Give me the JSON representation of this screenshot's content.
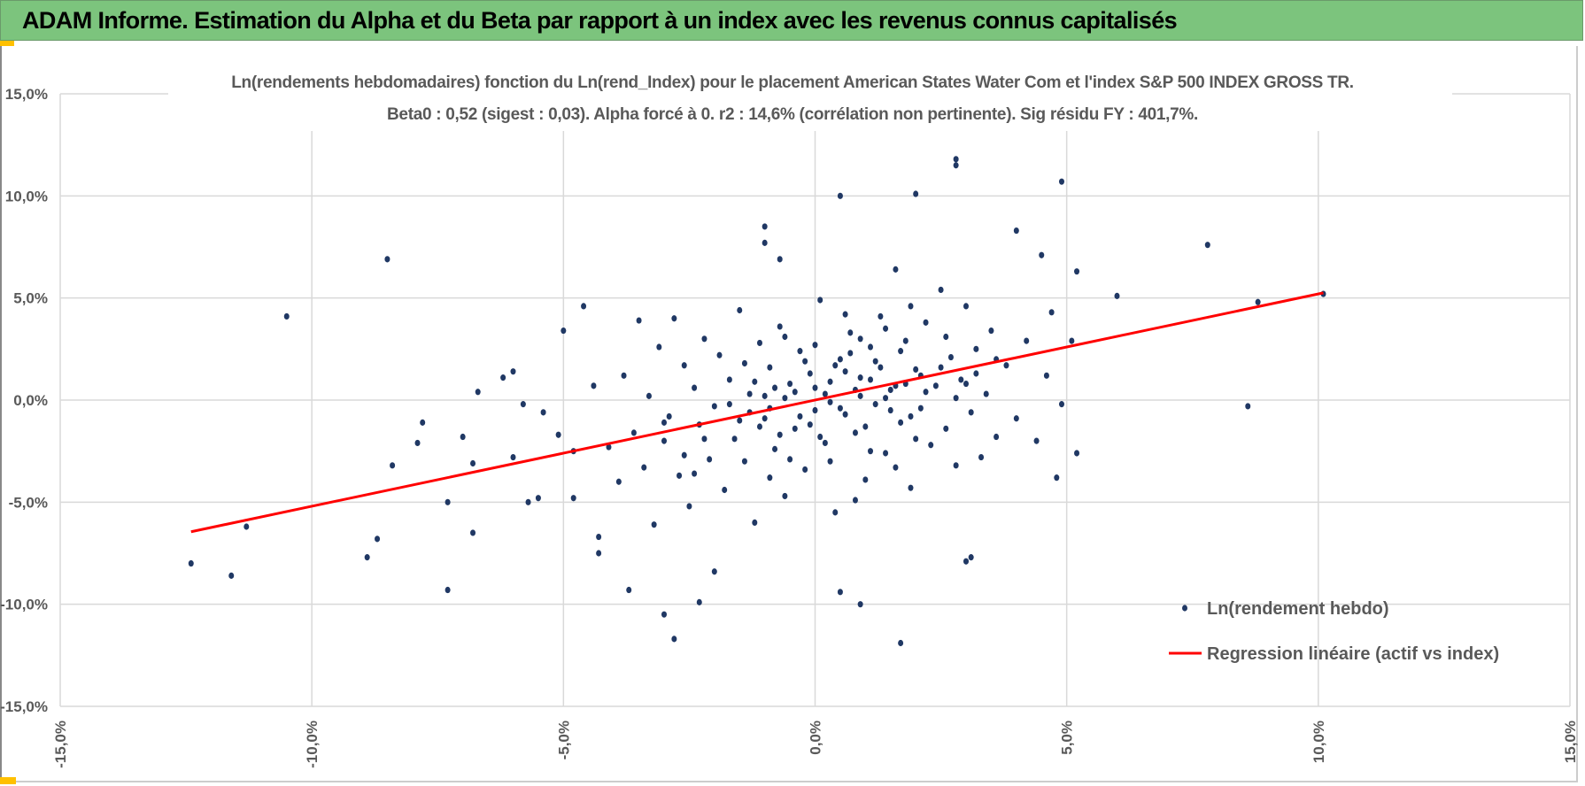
{
  "header": {
    "title": "ADAM Informe. Estimation du Alpha et du Beta par rapport à un index avec les revenus connus capitalisés"
  },
  "colors": {
    "header_bg": "#7cc47d",
    "points": "#203864",
    "regression": "#ff0000",
    "grid": "#d9d9d9",
    "text": "#595959",
    "accent": "#ffc000"
  },
  "chart_data": {
    "type": "scatter",
    "title": "Ln(rendements hebdomadaires) fonction du Ln(rend_Index) pour le placement American States Water Com et l'index S&P 500 INDEX GROSS TR.",
    "subtitle": "Beta0 : 0,52 (sigest : 0,03).  Alpha forcé à 0. r2 : 14,6% (corrélation non pertinente). Sig résidu FY : 401,7%.",
    "xlim": [
      -15,
      15
    ],
    "ylim": [
      -15,
      15
    ],
    "x_ticks": [
      "-15,0%",
      "-10,0%",
      "-5,0%",
      "0,0%",
      "5,0%",
      "10,0%",
      "15,0%"
    ],
    "y_ticks": [
      "15,0%",
      "10,0%",
      "5,0%",
      "0,0%",
      "-5,0%",
      "-10,0%",
      "-15,0%"
    ],
    "grid": true,
    "legend_position": "bottom-right",
    "series": [
      {
        "name": "Ln(rendement hebdo)",
        "type": "scatter",
        "points": [
          [
            -12.4,
            -8.0
          ],
          [
            -11.6,
            -8.6
          ],
          [
            -11.3,
            -6.2
          ],
          [
            -10.5,
            4.1
          ],
          [
            -8.5,
            6.9
          ],
          [
            -8.9,
            -7.7
          ],
          [
            -8.7,
            -6.8
          ],
          [
            -8.4,
            -3.2
          ],
          [
            -7.9,
            -2.1
          ],
          [
            -7.8,
            -1.1
          ],
          [
            -7.3,
            -9.3
          ],
          [
            -7.3,
            -5.0
          ],
          [
            -7.0,
            -1.8
          ],
          [
            -6.8,
            -3.1
          ],
          [
            -6.8,
            -6.5
          ],
          [
            -6.7,
            0.4
          ],
          [
            -6.2,
            1.1
          ],
          [
            -6.0,
            1.4
          ],
          [
            -6.0,
            -2.8
          ],
          [
            -5.8,
            -0.2
          ],
          [
            -5.7,
            -5.0
          ],
          [
            -5.5,
            -4.8
          ],
          [
            -5.4,
            -0.6
          ],
          [
            -5.0,
            3.4
          ],
          [
            -4.6,
            4.6
          ],
          [
            -5.1,
            -1.7
          ],
          [
            -4.8,
            -2.5
          ],
          [
            -4.8,
            -4.8
          ],
          [
            -4.4,
            0.7
          ],
          [
            -4.3,
            -6.7
          ],
          [
            -4.3,
            -7.5
          ],
          [
            -3.7,
            -9.3
          ],
          [
            -3.0,
            -10.5
          ],
          [
            -2.8,
            -11.7
          ],
          [
            -2.3,
            -9.9
          ],
          [
            -2.0,
            -8.4
          ],
          [
            -1.0,
            7.7
          ],
          [
            -0.7,
            6.9
          ],
          [
            -1.0,
            8.5
          ],
          [
            0.5,
            10.0
          ],
          [
            0.5,
            -9.4
          ],
          [
            0.9,
            -10.0
          ],
          [
            1.7,
            -11.9
          ],
          [
            2.0,
            10.1
          ],
          [
            2.8,
            11.8
          ],
          [
            2.8,
            11.5
          ],
          [
            3.0,
            -7.9
          ],
          [
            3.1,
            -7.7
          ],
          [
            4.9,
            10.7
          ],
          [
            6.0,
            5.1
          ],
          [
            7.8,
            7.6
          ],
          [
            8.6,
            -0.3
          ],
          [
            8.8,
            4.8
          ],
          [
            10.1,
            5.2
          ],
          [
            5.1,
            2.9
          ],
          [
            5.2,
            -2.6
          ],
          [
            5.2,
            6.3
          ],
          [
            4.8,
            -3.8
          ],
          [
            4.9,
            -0.2
          ],
          [
            4.0,
            8.3
          ],
          [
            4.5,
            7.1
          ],
          [
            -4.1,
            -2.3
          ],
          [
            -3.9,
            -4.0
          ],
          [
            -3.8,
            1.2
          ],
          [
            -3.6,
            -1.6
          ],
          [
            -3.5,
            3.9
          ],
          [
            -3.4,
            -3.3
          ],
          [
            -3.3,
            0.2
          ],
          [
            -3.2,
            -6.1
          ],
          [
            -3.1,
            2.6
          ],
          [
            -3.0,
            -2.0
          ],
          [
            -2.9,
            -0.8
          ],
          [
            -2.8,
            4.0
          ],
          [
            -2.7,
            -3.7
          ],
          [
            -2.6,
            1.7
          ],
          [
            -2.5,
            -5.2
          ],
          [
            -2.4,
            0.6
          ],
          [
            -2.3,
            -1.2
          ],
          [
            -2.2,
            3.0
          ],
          [
            -2.1,
            -2.9
          ],
          [
            -2.0,
            -0.3
          ],
          [
            -1.9,
            2.2
          ],
          [
            -1.8,
            -4.4
          ],
          [
            -1.7,
            1.0
          ],
          [
            -1.6,
            -1.9
          ],
          [
            -1.5,
            4.4
          ],
          [
            -1.4,
            -3.0
          ],
          [
            -1.3,
            0.3
          ],
          [
            -1.2,
            -6.0
          ],
          [
            -1.1,
            2.8
          ],
          [
            -1.0,
            -0.9
          ],
          [
            -0.9,
            1.6
          ],
          [
            -0.8,
            -2.4
          ],
          [
            -0.7,
            3.6
          ],
          [
            -0.6,
            -4.7
          ],
          [
            -0.5,
            0.8
          ],
          [
            -0.4,
            -1.4
          ],
          [
            -0.3,
            2.4
          ],
          [
            -0.2,
            -3.4
          ],
          [
            -0.1,
            1.3
          ],
          [
            0.0,
            -0.5
          ],
          [
            0.1,
            4.9
          ],
          [
            0.2,
            -2.1
          ],
          [
            0.3,
            0.9
          ],
          [
            0.4,
            -5.5
          ],
          [
            0.5,
            2.0
          ],
          [
            0.6,
            -0.7
          ],
          [
            0.7,
            3.3
          ],
          [
            0.8,
            -1.6
          ],
          [
            0.9,
            1.1
          ],
          [
            1.0,
            -3.9
          ],
          [
            1.1,
            2.6
          ],
          [
            1.2,
            -0.2
          ],
          [
            1.3,
            4.1
          ],
          [
            1.4,
            -2.6
          ],
          [
            1.5,
            0.5
          ],
          [
            1.6,
            6.4
          ],
          [
            1.7,
            -1.1
          ],
          [
            1.8,
            2.9
          ],
          [
            1.9,
            -4.3
          ],
          [
            2.0,
            1.5
          ],
          [
            2.1,
            -0.4
          ],
          [
            2.2,
            3.8
          ],
          [
            2.3,
            -2.2
          ],
          [
            2.4,
            0.7
          ],
          [
            2.5,
            5.4
          ],
          [
            2.6,
            -1.4
          ],
          [
            2.7,
            2.1
          ],
          [
            2.8,
            -3.2
          ],
          [
            2.9,
            1.0
          ],
          [
            3.0,
            4.6
          ],
          [
            3.1,
            -0.6
          ],
          [
            3.2,
            2.5
          ],
          [
            3.3,
            -2.8
          ],
          [
            3.4,
            0.3
          ],
          [
            3.5,
            3.4
          ],
          [
            3.6,
            -1.8
          ],
          [
            3.8,
            1.7
          ],
          [
            4.0,
            -0.9
          ],
          [
            4.2,
            2.9
          ],
          [
            4.4,
            -2.0
          ],
          [
            4.6,
            1.2
          ],
          [
            4.7,
            4.3
          ],
          [
            -1.5,
            -1.0
          ],
          [
            -1.2,
            0.9
          ],
          [
            -0.9,
            -0.4
          ],
          [
            -0.6,
            0.1
          ],
          [
            -0.3,
            -0.8
          ],
          [
            0.0,
            0.6
          ],
          [
            0.3,
            -0.1
          ],
          [
            0.6,
            1.4
          ],
          [
            0.9,
            0.2
          ],
          [
            1.2,
            1.9
          ],
          [
            1.5,
            -0.5
          ],
          [
            1.8,
            0.8
          ],
          [
            2.1,
            1.2
          ],
          [
            0.2,
            0.3
          ],
          [
            0.5,
            -0.4
          ],
          [
            0.8,
            0.5
          ],
          [
            1.1,
            1.0
          ],
          [
            1.4,
            0.1
          ],
          [
            -0.1,
            -1.2
          ],
          [
            -0.4,
            0.4
          ],
          [
            -0.7,
            -1.7
          ],
          [
            -1.0,
            0.2
          ],
          [
            -1.3,
            -0.6
          ],
          [
            0.4,
            1.7
          ],
          [
            0.7,
            2.3
          ],
          [
            1.0,
            -1.3
          ],
          [
            1.3,
            1.6
          ],
          [
            1.6,
            0.7
          ],
          [
            1.9,
            -0.8
          ],
          [
            2.2,
            0.4
          ],
          [
            -0.2,
            1.9
          ],
          [
            -0.5,
            -2.9
          ],
          [
            -0.8,
            0.6
          ],
          [
            -1.1,
            -1.3
          ],
          [
            0.1,
            -1.8
          ],
          [
            0.9,
            3.0
          ],
          [
            1.7,
            2.4
          ],
          [
            2.5,
            1.6
          ],
          [
            -2.2,
            -1.9
          ],
          [
            -1.7,
            -0.2
          ],
          [
            -2.6,
            -2.7
          ],
          [
            3.2,
            1.3
          ],
          [
            2.8,
            0.1
          ],
          [
            3.6,
            2.0
          ],
          [
            -3.0,
            -1.1
          ],
          [
            0.6,
            4.2
          ],
          [
            1.4,
            3.5
          ],
          [
            0.3,
            -3.0
          ],
          [
            1.1,
            -2.5
          ],
          [
            -0.6,
            3.1
          ],
          [
            2.0,
            -1.9
          ],
          [
            2.6,
            3.1
          ],
          [
            -1.4,
            1.8
          ],
          [
            -2.4,
            -3.6
          ],
          [
            0.0,
            2.7
          ],
          [
            1.6,
            -3.3
          ],
          [
            3.0,
            0.8
          ],
          [
            -0.9,
            -3.8
          ],
          [
            1.9,
            4.6
          ],
          [
            0.8,
            -4.9
          ]
        ]
      },
      {
        "name": "Regression linéaire (actif vs index)",
        "type": "line",
        "beta": 0.52,
        "alpha": 0,
        "x_range": [
          -12.4,
          10.1
        ]
      }
    ]
  }
}
